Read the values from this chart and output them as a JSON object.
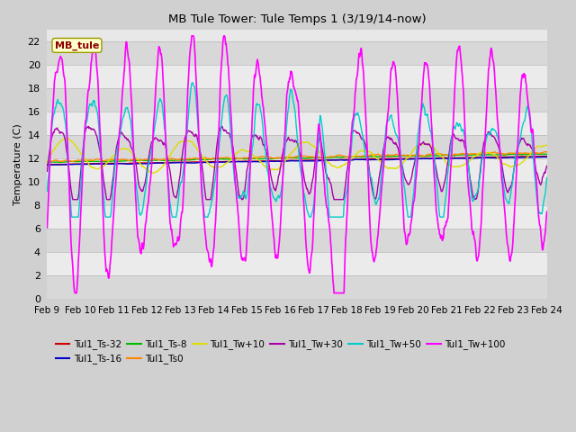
{
  "title": "MB Tule Tower: Tule Temps 1 (3/19/14-now)",
  "ylabel": "Temperature (C)",
  "xlabel": "",
  "ylim": [
    0,
    23
  ],
  "yticks": [
    0,
    2,
    4,
    6,
    8,
    10,
    12,
    14,
    16,
    18,
    20,
    22
  ],
  "xstart": 9,
  "xend": 24,
  "xtick_labels": [
    "Feb 9",
    "Feb 10",
    "Feb 11",
    "Feb 12",
    "Feb 13",
    "Feb 14",
    "Feb 15",
    "Feb 16",
    "Feb 17",
    "Feb 18",
    "Feb 19",
    "Feb 20",
    "Feb 21",
    "Feb 22",
    "Feb 23",
    "Feb 24"
  ],
  "series": {
    "Tul1_Ts-32": {
      "color": "#cc0000",
      "lw": 1.0
    },
    "Tul1_Ts-16": {
      "color": "#0000cc",
      "lw": 1.0
    },
    "Tul1_Ts-8": {
      "color": "#00bb00",
      "lw": 1.0
    },
    "Tul1_Ts0": {
      "color": "#ff8800",
      "lw": 1.0
    },
    "Tul1_Tw+10": {
      "color": "#dddd00",
      "lw": 1.0
    },
    "Tul1_Tw+30": {
      "color": "#aa00aa",
      "lw": 1.0
    },
    "Tul1_Tw+50": {
      "color": "#00cccc",
      "lw": 1.0
    },
    "Tul1_Tw+100": {
      "color": "#ff00ff",
      "lw": 1.2
    }
  },
  "n_points": 900,
  "figsize": [
    6.4,
    4.8
  ],
  "dpi": 100
}
